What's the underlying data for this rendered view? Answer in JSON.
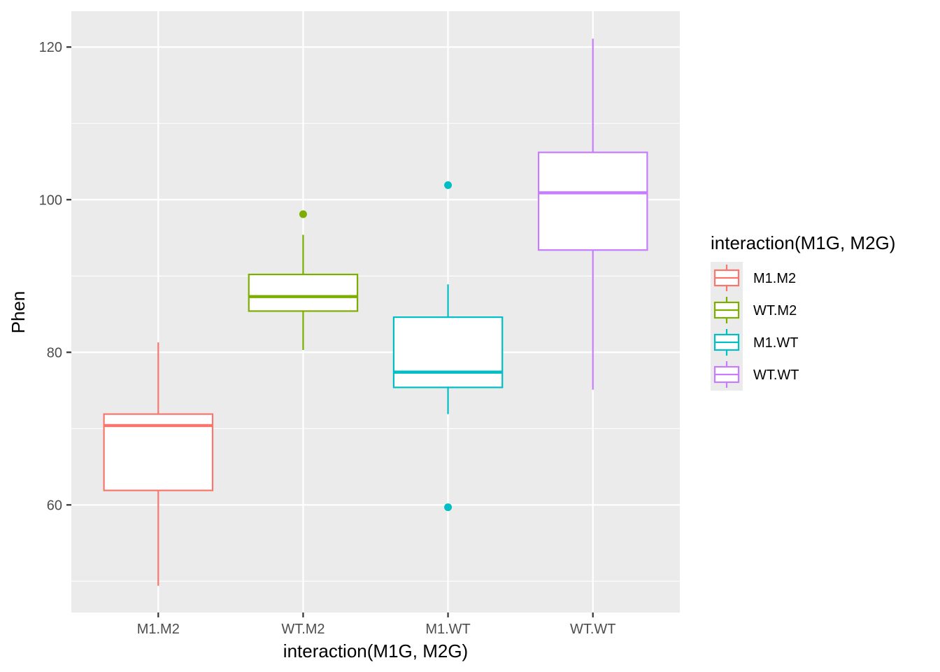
{
  "chart_data": {
    "type": "boxplot",
    "xlabel": "interaction(M1G, M2G)",
    "ylabel": "Phen",
    "categories": [
      "M1.M2",
      "WT.M2",
      "M1.WT",
      "WT.WT"
    ],
    "ylim": [
      45.9,
      124.7
    ],
    "yticks": [
      60,
      80,
      100,
      120
    ],
    "y_minor_ticks": [
      50,
      70,
      90,
      110
    ],
    "grid": true,
    "legend": {
      "title": "interaction(M1G, M2G)",
      "position": "right",
      "entries": [
        "M1.M2",
        "WT.M2",
        "M1.WT",
        "WT.WT"
      ]
    },
    "series": [
      {
        "category": "M1.M2",
        "color": "#F8766D",
        "whisker_low": 49.4,
        "q1": 61.9,
        "median": 70.4,
        "q3": 71.9,
        "whisker_high": 81.3,
        "outliers": []
      },
      {
        "category": "WT.M2",
        "color": "#7CAE00",
        "whisker_low": 80.3,
        "q1": 85.4,
        "median": 87.3,
        "q3": 90.2,
        "whisker_high": 95.4,
        "outliers": [
          98.1
        ]
      },
      {
        "category": "M1.WT",
        "color": "#00BFC4",
        "whisker_low": 71.9,
        "q1": 75.4,
        "median": 77.4,
        "q3": 84.6,
        "whisker_high": 88.9,
        "outliers": [
          101.9,
          59.7
        ]
      },
      {
        "category": "WT.WT",
        "color": "#C77CFF",
        "whisker_low": 75.1,
        "q1": 93.4,
        "median": 100.9,
        "q3": 106.2,
        "whisker_high": 121.1,
        "outliers": []
      }
    ]
  }
}
